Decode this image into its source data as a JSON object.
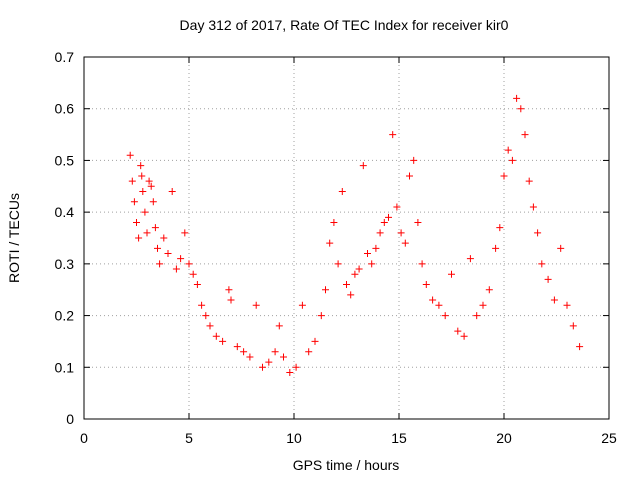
{
  "chart_data": {
    "type": "scatter",
    "title": "Day 312 of 2017, Rate Of TEC Index for receiver kir0",
    "xlabel": "GPS time / hours",
    "ylabel": "ROTI / TECUs",
    "xlim": [
      0,
      25
    ],
    "ylim": [
      0,
      0.7
    ],
    "xticks": [
      0,
      5,
      10,
      15,
      20,
      25
    ],
    "yticks": [
      0,
      0.1,
      0.2,
      0.3,
      0.4,
      0.5,
      0.6,
      0.7
    ],
    "xtick_labels": [
      "0",
      "5",
      "10",
      "15",
      "20",
      "25"
    ],
    "ytick_labels": [
      "0",
      "0.1",
      "0.2",
      "0.3",
      "0.4",
      "0.5",
      "0.6",
      "0.7"
    ],
    "grid": true,
    "marker": "+",
    "color": "#ff0000",
    "series": [
      {
        "name": "ROTI",
        "points": [
          [
            2.2,
            0.51
          ],
          [
            2.3,
            0.46
          ],
          [
            2.4,
            0.42
          ],
          [
            2.5,
            0.38
          ],
          [
            2.6,
            0.35
          ],
          [
            2.7,
            0.49
          ],
          [
            2.75,
            0.47
          ],
          [
            2.8,
            0.44
          ],
          [
            2.9,
            0.4
          ],
          [
            3.0,
            0.36
          ],
          [
            3.1,
            0.46
          ],
          [
            3.2,
            0.45
          ],
          [
            3.3,
            0.42
          ],
          [
            3.4,
            0.37
          ],
          [
            3.5,
            0.33
          ],
          [
            3.6,
            0.3
          ],
          [
            3.8,
            0.35
          ],
          [
            4.0,
            0.32
          ],
          [
            4.2,
            0.44
          ],
          [
            4.4,
            0.29
          ],
          [
            4.6,
            0.31
          ],
          [
            4.8,
            0.36
          ],
          [
            5.0,
            0.3
          ],
          [
            5.2,
            0.28
          ],
          [
            5.4,
            0.26
          ],
          [
            5.6,
            0.22
          ],
          [
            5.8,
            0.2
          ],
          [
            6.0,
            0.18
          ],
          [
            6.3,
            0.16
          ],
          [
            6.6,
            0.15
          ],
          [
            6.9,
            0.25
          ],
          [
            7.0,
            0.23
          ],
          [
            7.3,
            0.14
          ],
          [
            7.6,
            0.13
          ],
          [
            7.9,
            0.12
          ],
          [
            8.2,
            0.22
          ],
          [
            8.5,
            0.1
          ],
          [
            8.8,
            0.11
          ],
          [
            9.1,
            0.13
          ],
          [
            9.3,
            0.18
          ],
          [
            9.5,
            0.12
          ],
          [
            9.8,
            0.09
          ],
          [
            10.1,
            0.1
          ],
          [
            10.4,
            0.22
          ],
          [
            10.7,
            0.13
          ],
          [
            11.0,
            0.15
          ],
          [
            11.3,
            0.2
          ],
          [
            11.5,
            0.25
          ],
          [
            11.7,
            0.34
          ],
          [
            11.9,
            0.38
          ],
          [
            12.1,
            0.3
          ],
          [
            12.3,
            0.44
          ],
          [
            12.5,
            0.26
          ],
          [
            12.7,
            0.24
          ],
          [
            12.9,
            0.28
          ],
          [
            13.1,
            0.29
          ],
          [
            13.3,
            0.49
          ],
          [
            13.5,
            0.32
          ],
          [
            13.7,
            0.3
          ],
          [
            13.9,
            0.33
          ],
          [
            14.1,
            0.36
          ],
          [
            14.3,
            0.38
          ],
          [
            14.5,
            0.39
          ],
          [
            14.7,
            0.55
          ],
          [
            14.9,
            0.41
          ],
          [
            15.1,
            0.36
          ],
          [
            15.3,
            0.34
          ],
          [
            15.5,
            0.47
          ],
          [
            15.7,
            0.5
          ],
          [
            15.9,
            0.38
          ],
          [
            16.1,
            0.3
          ],
          [
            16.3,
            0.26
          ],
          [
            16.6,
            0.23
          ],
          [
            16.9,
            0.22
          ],
          [
            17.2,
            0.2
          ],
          [
            17.5,
            0.28
          ],
          [
            17.8,
            0.17
          ],
          [
            18.1,
            0.16
          ],
          [
            18.4,
            0.31
          ],
          [
            18.7,
            0.2
          ],
          [
            19.0,
            0.22
          ],
          [
            19.3,
            0.25
          ],
          [
            19.6,
            0.33
          ],
          [
            19.8,
            0.37
          ],
          [
            20.0,
            0.47
          ],
          [
            20.2,
            0.52
          ],
          [
            20.4,
            0.5
          ],
          [
            20.6,
            0.62
          ],
          [
            20.8,
            0.6
          ],
          [
            21.0,
            0.55
          ],
          [
            21.2,
            0.46
          ],
          [
            21.4,
            0.41
          ],
          [
            21.6,
            0.36
          ],
          [
            21.8,
            0.3
          ],
          [
            22.1,
            0.27
          ],
          [
            22.4,
            0.23
          ],
          [
            22.7,
            0.33
          ],
          [
            23.0,
            0.22
          ],
          [
            23.3,
            0.18
          ],
          [
            23.6,
            0.14
          ]
        ]
      }
    ]
  }
}
